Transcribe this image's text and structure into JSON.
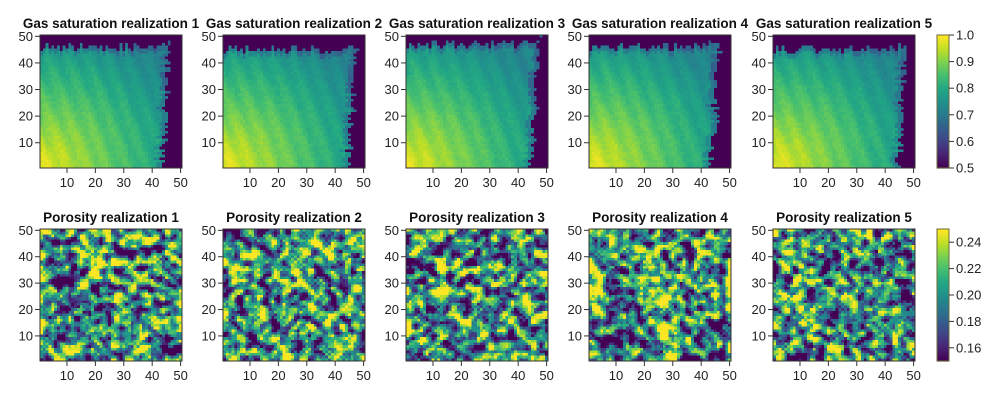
{
  "chart_data": [
    {
      "type": "heatmap",
      "group": "gas_saturation",
      "colormap": "viridis",
      "clim": [
        0.5,
        1.0
      ],
      "grid_size": [
        50,
        50
      ],
      "xlim": [
        0.5,
        50.5
      ],
      "ylim": [
        0.5,
        50.5
      ],
      "xticks": [
        10,
        20,
        30,
        40,
        50
      ],
      "yticks": [
        10,
        20,
        30,
        40,
        50
      ],
      "colorbar_ticks": [
        "0.5",
        "0.6",
        "0.7",
        "0.8",
        "0.9",
        "1.0"
      ],
      "colorbar_tick_values": [
        0.5,
        0.6,
        0.7,
        0.8,
        0.9,
        1.0
      ],
      "panels": [
        {
          "title": "Gas saturation realization 1",
          "front_top": 46,
          "front_right": 45,
          "seed": 11
        },
        {
          "title": "Gas saturation realization 2",
          "front_top": 45,
          "front_right": 46,
          "seed": 23
        },
        {
          "title": "Gas saturation realization 3",
          "front_top": 47,
          "front_right": 46,
          "seed": 37
        },
        {
          "title": "Gas saturation realization 4",
          "front_top": 46,
          "front_right": 45,
          "seed": 41
        },
        {
          "title": "Gas saturation realization 5",
          "front_top": 45,
          "front_right": 46,
          "seed": 59
        }
      ],
      "description": "Plume of gas saturation: highest (~1.0) at bottom-left injection corner, decreasing to ~0.7 toward the front; outside the front (top rows above ~y=45 and right columns beyond ~x=45) saturation is 0.5."
    },
    {
      "type": "heatmap",
      "group": "porosity",
      "colormap": "viridis",
      "clim": [
        0.15,
        0.25
      ],
      "grid_size": [
        50,
        50
      ],
      "xlim": [
        0.5,
        50.5
      ],
      "ylim": [
        0.5,
        50.5
      ],
      "xticks": [
        10,
        20,
        30,
        40,
        50
      ],
      "yticks": [
        10,
        20,
        30,
        40,
        50
      ],
      "colorbar_ticks": [
        "0.16",
        "0.18",
        "0.20",
        "0.22",
        "0.24"
      ],
      "colorbar_tick_values": [
        0.16,
        0.18,
        0.2,
        0.22,
        0.24
      ],
      "panels": [
        {
          "title": "Porosity realization 1",
          "seed": 101
        },
        {
          "title": "Porosity realization 2",
          "seed": 202
        },
        {
          "title": "Porosity realization 3",
          "seed": 303
        },
        {
          "title": "Porosity realization 4",
          "seed": 404
        },
        {
          "title": "Porosity realization 5",
          "seed": 505
        }
      ],
      "description": "Spatially correlated random porosity field, values roughly 0.15-0.25, with many cells saturated at the colormap extremes."
    }
  ],
  "colors": {
    "viridis_low": "#440154",
    "viridis_mid": "#21918c",
    "viridis_high": "#fde725",
    "axis": "#333333"
  }
}
